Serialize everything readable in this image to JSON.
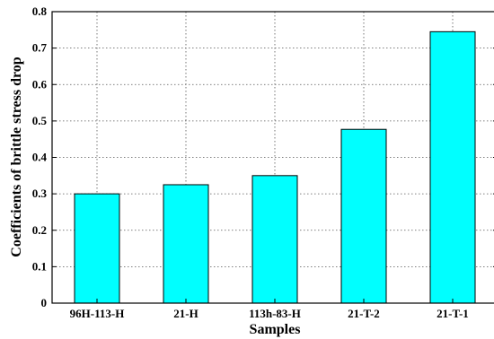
{
  "chart_data": {
    "type": "bar",
    "categories": [
      "96H-113-H",
      "21-H",
      "113h-83-H",
      "21-T-2",
      "21-T-1"
    ],
    "values": [
      0.3,
      0.325,
      0.35,
      0.477,
      0.745
    ],
    "xlabel": "Samples",
    "ylabel": "Coefficients of brittle stress drop",
    "ylim": [
      0,
      0.8
    ],
    "yticks": [
      0,
      0.1,
      0.2,
      0.3,
      0.4,
      0.5,
      0.6,
      0.7,
      0.8
    ],
    "ytick_labels": [
      "0",
      "0.1",
      "0.2",
      "0.3",
      "0.4",
      "0.5",
      "0.6",
      "0.7",
      "0.8"
    ],
    "grid": true,
    "bar_color": "#00ffff",
    "bar_edge_color": "#000000"
  }
}
